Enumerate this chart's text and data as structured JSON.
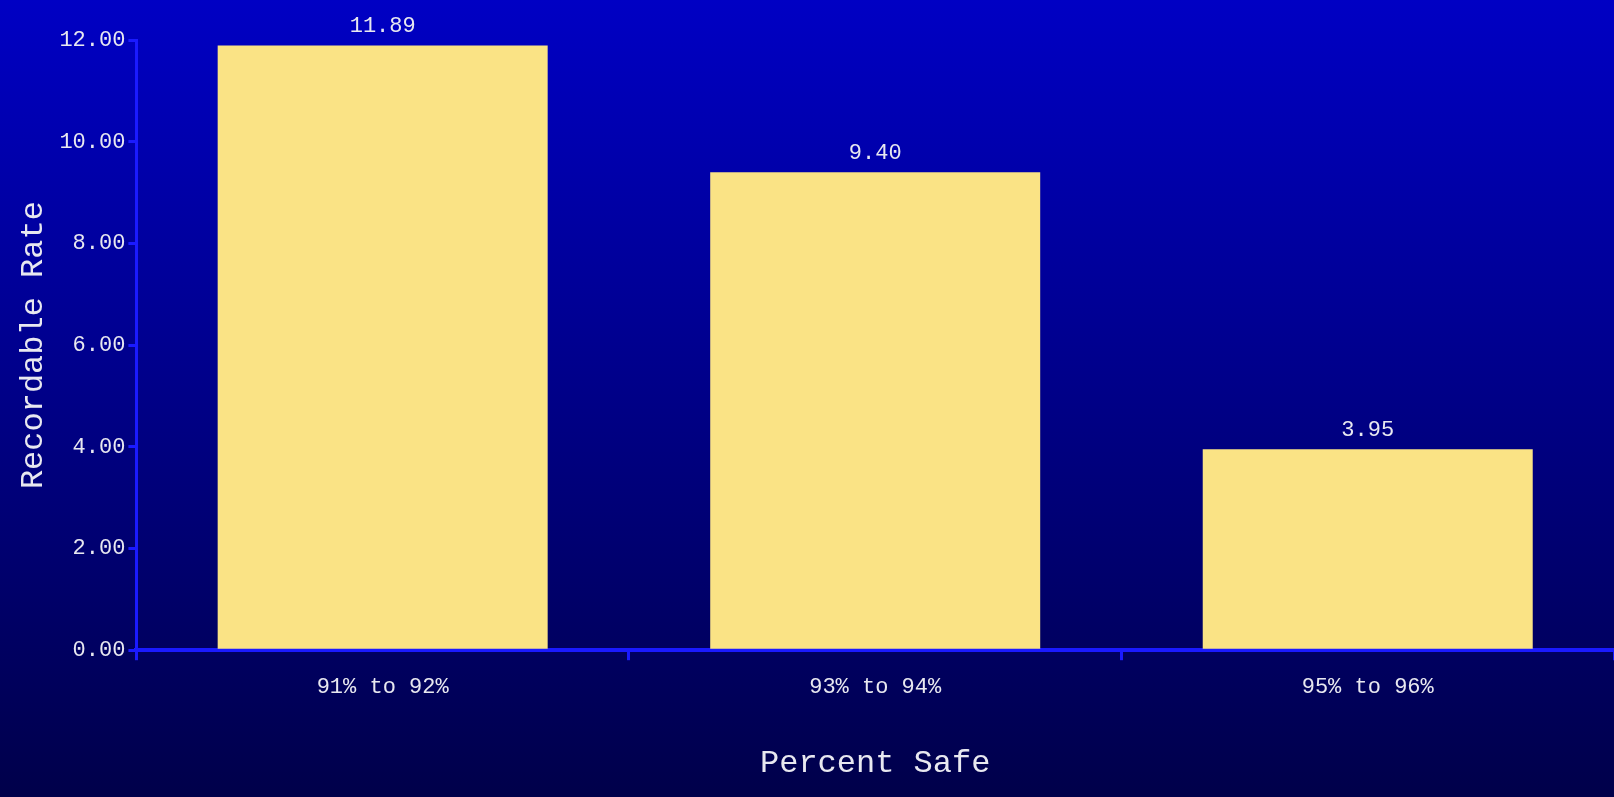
{
  "chart_data": {
    "type": "bar",
    "xlabel": "Percent Safe",
    "ylabel": "Recordable Rate",
    "categories": [
      "91% to 92%",
      "93% to 94%",
      "95% to 96%"
    ],
    "values": [
      11.89,
      9.4,
      3.95
    ],
    "value_labels": [
      "11.89",
      "9.40",
      "3.95"
    ],
    "color": "#fae385",
    "ylim": [
      0,
      12
    ],
    "yticks": [
      {
        "value": 0,
        "label": "0.00"
      },
      {
        "value": 2,
        "label": "2.00"
      },
      {
        "value": 4,
        "label": "4.00"
      },
      {
        "value": 6,
        "label": "6.00"
      },
      {
        "value": 8,
        "label": "8.00"
      },
      {
        "value": 10,
        "label": "10.00"
      },
      {
        "value": 12,
        "label": "12.00"
      }
    ],
    "grid": false,
    "legend": false
  }
}
